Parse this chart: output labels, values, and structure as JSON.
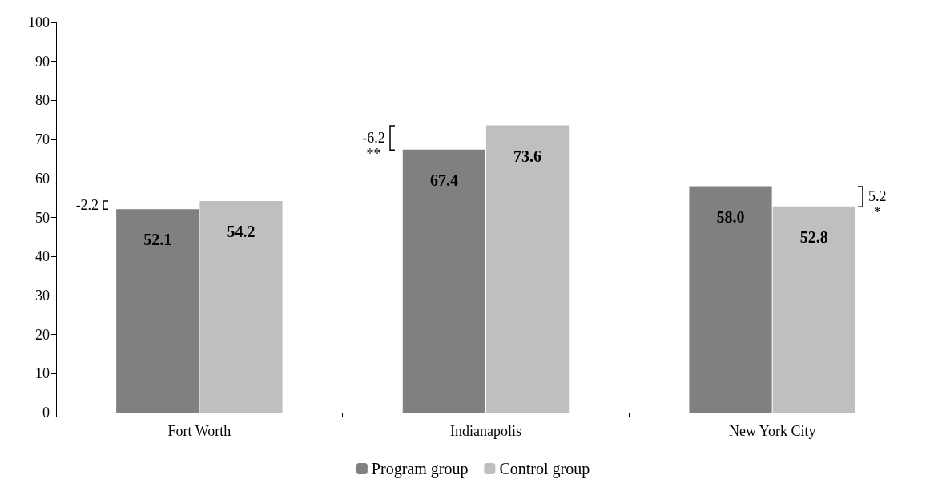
{
  "chart_data": {
    "type": "bar",
    "categories": [
      "Fort Worth",
      "Indianapolis",
      "New York City"
    ],
    "series": [
      {
        "name": "Program group",
        "color": "#808080",
        "values": [
          52.1,
          67.4,
          58.0
        ],
        "value_labels": [
          "52.1",
          "67.4",
          "58.0"
        ]
      },
      {
        "name": "Control group",
        "color": "#bfbfbf",
        "values": [
          54.2,
          73.6,
          52.8
        ],
        "value_labels": [
          "54.2",
          "73.6",
          "52.8"
        ]
      }
    ],
    "ylim": [
      0,
      100
    ],
    "yticks": [
      0,
      10,
      20,
      30,
      40,
      50,
      60,
      70,
      80,
      90,
      100
    ],
    "legend": "bottom",
    "annotations": [
      "-2.2",
      "-6.2\n**",
      "5.2\n*"
    ]
  }
}
